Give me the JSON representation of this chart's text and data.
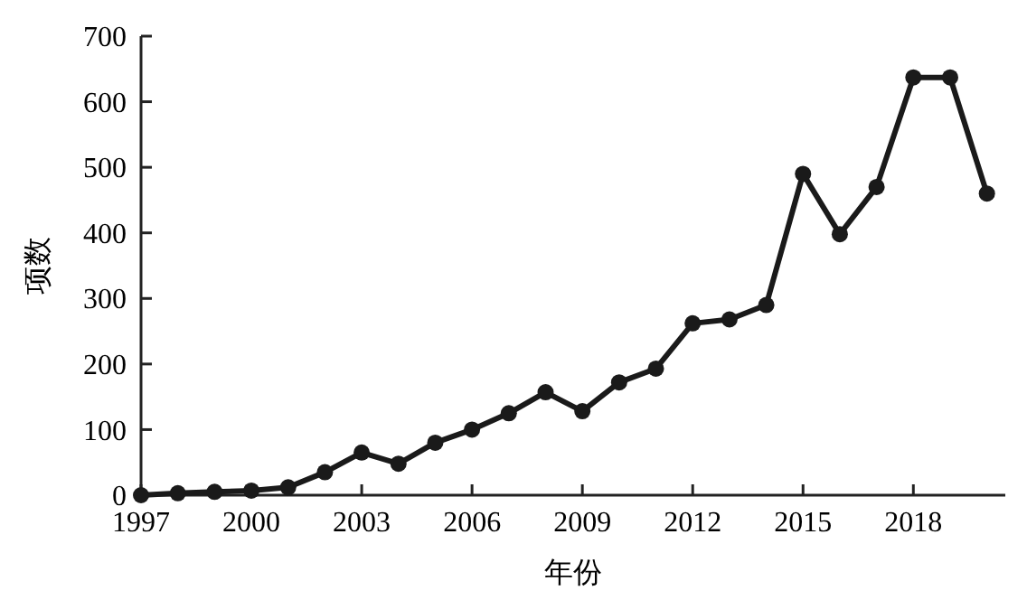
{
  "chart_data": {
    "type": "line",
    "xlabel": "年份",
    "ylabel": "项数",
    "x": [
      1997,
      1998,
      1999,
      2000,
      2001,
      2002,
      2003,
      2004,
      2005,
      2006,
      2007,
      2008,
      2009,
      2010,
      2011,
      2012,
      2013,
      2014,
      2015,
      2016,
      2017,
      2018,
      2019,
      2020
    ],
    "series": [
      {
        "color": "#1a1a1a",
        "values": [
          0,
          3,
          5,
          7,
          12,
          35,
          65,
          48,
          80,
          100,
          125,
          157,
          128,
          172,
          193,
          262,
          268,
          290,
          490,
          398,
          470,
          637,
          637,
          460
        ]
      }
    ],
    "xlim": [
      1997,
      2020.5
    ],
    "xticks": [
      1997,
      2000,
      2003,
      2006,
      2009,
      2012,
      2015,
      2018
    ],
    "ylim": [
      0,
      700
    ],
    "yticks": [
      0,
      100,
      200,
      300,
      400,
      500,
      600,
      700
    ],
    "marker": "circle",
    "line_style": "solid"
  }
}
